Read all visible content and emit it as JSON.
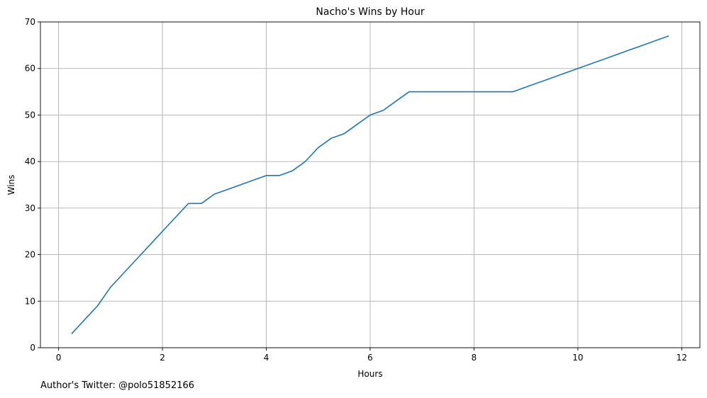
{
  "chart_data": {
    "type": "line",
    "title": "Nacho's Wins by Hour",
    "xlabel": "Hours",
    "ylabel": "Wins",
    "xlim": [
      -0.35,
      12.35
    ],
    "ylim": [
      0,
      70
    ],
    "xticks": [
      0,
      2,
      4,
      6,
      8,
      10,
      12
    ],
    "yticks": [
      0,
      10,
      20,
      30,
      40,
      50,
      60,
      70
    ],
    "grid": true,
    "color": "#1f77b4",
    "x": [
      0.25,
      0.5,
      0.75,
      1.0,
      1.25,
      1.5,
      1.75,
      2.0,
      2.25,
      2.5,
      2.75,
      3.0,
      3.25,
      3.5,
      3.75,
      4.0,
      4.25,
      4.5,
      4.75,
      5.0,
      5.25,
      5.5,
      5.75,
      6.0,
      6.25,
      6.5,
      6.75,
      7.0,
      7.25,
      7.5,
      7.75,
      8.0,
      8.25,
      8.5,
      8.75,
      9.0,
      9.25,
      9.5,
      9.75,
      10.0,
      10.25,
      10.5,
      10.75,
      11.0,
      11.25,
      11.5,
      11.75
    ],
    "y": [
      3,
      6,
      9,
      13,
      16,
      19,
      22,
      25,
      28,
      31,
      31,
      33,
      34,
      35,
      36,
      37,
      37,
      38,
      40,
      43,
      45,
      46,
      48,
      50,
      51,
      53,
      55,
      55,
      55,
      55,
      55,
      55,
      55,
      55,
      55,
      56,
      57,
      58,
      59,
      60,
      61,
      62,
      63,
      64,
      65,
      66,
      67
    ]
  },
  "footnote": "Author's Twitter: @polo51852166"
}
